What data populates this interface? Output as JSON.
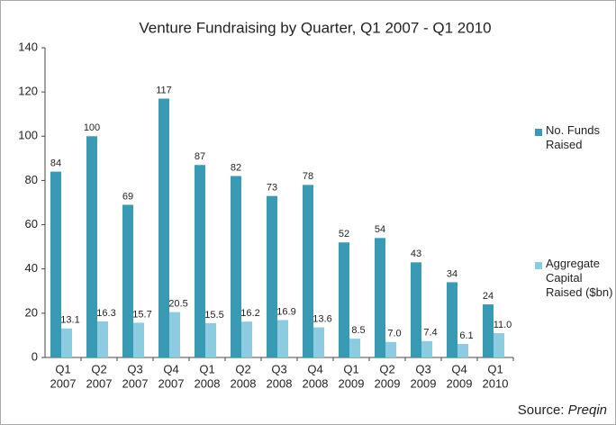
{
  "chart_data": {
    "type": "bar",
    "title": "Venture Fundraising by Quarter, Q1 2007 - Q1 2010",
    "categories": [
      [
        "Q1",
        "2007"
      ],
      [
        "Q2",
        "2007"
      ],
      [
        "Q3",
        "2007"
      ],
      [
        "Q4",
        "2007"
      ],
      [
        "Q1",
        "2008"
      ],
      [
        "Q2",
        "2008"
      ],
      [
        "Q3",
        "2008"
      ],
      [
        "Q4",
        "2008"
      ],
      [
        "Q1",
        "2009"
      ],
      [
        "Q2",
        "2009"
      ],
      [
        "Q3",
        "2009"
      ],
      [
        "Q4",
        "2009"
      ],
      [
        "Q1",
        "2010"
      ]
    ],
    "series": [
      {
        "name": "No. Funds Raised",
        "color": "#3a9ab4",
        "values": [
          84,
          100,
          69,
          117,
          87,
          82,
          73,
          78,
          52,
          54,
          43,
          34,
          24
        ]
      },
      {
        "name": "Aggregate Capital Raised ($bn)",
        "color": "#8ccbe0",
        "values": [
          13.1,
          16.3,
          15.7,
          20.5,
          15.5,
          16.2,
          16.9,
          13.6,
          8.5,
          7.0,
          7.4,
          6.1,
          11.0
        ],
        "value_labels": [
          "13.1",
          "16.3",
          "15.7",
          "20.5",
          "15.5",
          "16.2",
          "16.9",
          "13.6",
          "8.5",
          "7.0",
          "7.4",
          "6.1",
          "11.0"
        ]
      }
    ],
    "ylim": [
      0,
      140
    ],
    "yticks": [
      0,
      20,
      40,
      60,
      80,
      100,
      120,
      140
    ],
    "grid": false,
    "legend": "right",
    "source_label": "Source:",
    "source": "Preqin"
  }
}
